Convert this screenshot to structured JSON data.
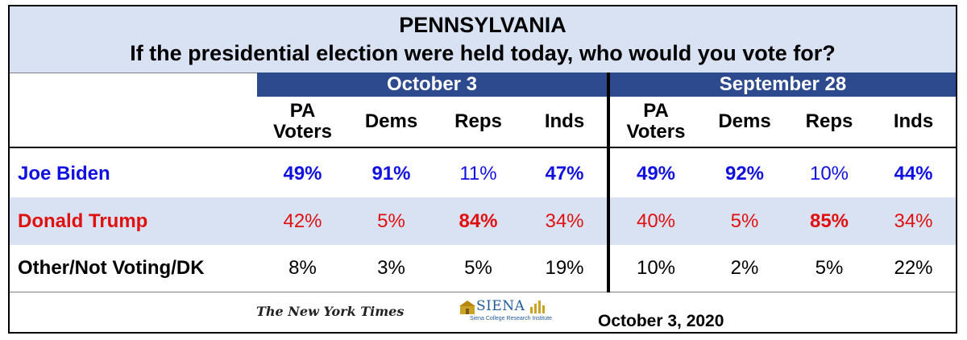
{
  "header": {
    "title": "PENNSYLVANIA",
    "subtitle": "If the presidential election were held today, who would you vote for?"
  },
  "periods": [
    "October 3",
    "September 28"
  ],
  "columns": [
    [
      "PA",
      "Voters"
    ],
    [
      "Dems"
    ],
    [
      "Reps"
    ],
    [
      "Inds"
    ],
    [
      "PA",
      "Voters"
    ],
    [
      "Dems"
    ],
    [
      "Reps"
    ],
    [
      "Inds"
    ]
  ],
  "rows": [
    {
      "label": "Joe Biden",
      "values": [
        "49%",
        "91%",
        "11%",
        "47%",
        "49%",
        "92%",
        "10%",
        "44%"
      ]
    },
    {
      "label": "Donald Trump",
      "values": [
        "42%",
        "5%",
        "84%",
        "34%",
        "40%",
        "5%",
        "85%",
        "34%"
      ]
    },
    {
      "label": "Other/Not Voting/DK",
      "values": [
        "8%",
        "3%",
        "5%",
        "19%",
        "10%",
        "2%",
        "5%",
        "22%"
      ]
    }
  ],
  "footer": {
    "nyt": "The New York Times",
    "siena": "SIENA",
    "siena_sub": "Siena College Research Institute",
    "date": "October 3, 2020"
  },
  "colors": {
    "header_band": "#d9e2f3",
    "period_band": "#2e4a8f",
    "biden": "#1010e0",
    "trump": "#e01010"
  },
  "chart_data": {
    "type": "table",
    "title": "PENNSYLVANIA",
    "subtitle": "If the presidential election were held today, who would you vote for?",
    "groups": [
      "October 3",
      "September 28"
    ],
    "columns": [
      "PA Voters",
      "Dems",
      "Reps",
      "Inds"
    ],
    "series": [
      {
        "name": "Joe Biden",
        "October 3": [
          49,
          91,
          11,
          47
        ],
        "September 28": [
          49,
          92,
          10,
          44
        ]
      },
      {
        "name": "Donald Trump",
        "October 3": [
          42,
          5,
          84,
          34
        ],
        "September 28": [
          40,
          5,
          85,
          34
        ]
      },
      {
        "name": "Other/Not Voting/DK",
        "October 3": [
          8,
          3,
          5,
          19
        ],
        "September 28": [
          10,
          2,
          5,
          22
        ]
      }
    ]
  }
}
